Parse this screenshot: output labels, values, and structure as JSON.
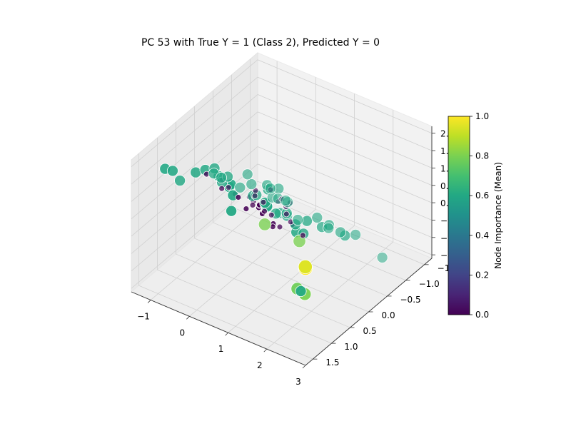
{
  "chart_data": {
    "type": "scatter",
    "projection": "3d",
    "title": "PC 53 with True Y = 1 (Class 2), Predicted Y = 0",
    "xlabel": "",
    "ylabel": "",
    "zlabel": "",
    "x_ticks": [
      "−1",
      "0",
      "1",
      "2",
      "3"
    ],
    "y_ticks": [
      "−1.5",
      "−1.0",
      "−0.5",
      "0.0",
      "0.5",
      "1.0",
      "1.5"
    ],
    "z_ticks": [
      "−1.5",
      "−1.0",
      "−0.5",
      "0.0",
      "0.5",
      "1.0",
      "1.5",
      "2.0"
    ],
    "xlim": [
      -1.5,
      3.0
    ],
    "ylim": [
      -1.7,
      1.7
    ],
    "zlim": [
      -1.6,
      2.2
    ],
    "grid": true,
    "colormap": "viridis",
    "colorbar": {
      "label": "Node Importance (Mean)",
      "ticks": [
        "0.0",
        "0.2",
        "0.4",
        "0.6",
        "0.8",
        "1.0"
      ],
      "range": [
        0.0,
        1.0
      ]
    },
    "points": [
      {
        "x": 0.6,
        "y": 1.25,
        "z": 2.0,
        "importance": 0.6
      },
      {
        "x": 0.7,
        "y": 1.3,
        "z": 1.4,
        "importance": 0.6
      },
      {
        "x": 0.55,
        "y": 1.1,
        "z": 1.6,
        "importance": 0.6
      },
      {
        "x": 0.4,
        "y": 1.0,
        "z": 1.75,
        "importance": 0.6
      },
      {
        "x": -1.3,
        "y": 1.0,
        "z": 1.4,
        "importance": 0.6
      },
      {
        "x": -1.2,
        "y": 0.9,
        "z": 1.3,
        "importance": 0.6
      },
      {
        "x": -0.7,
        "y": 0.8,
        "z": 1.4,
        "importance": 0.6
      },
      {
        "x": -0.55,
        "y": 0.7,
        "z": 1.45,
        "importance": 0.6
      },
      {
        "x": -0.3,
        "y": 0.6,
        "z": 1.3,
        "importance": 0.6
      },
      {
        "x": -0.6,
        "y": 0.4,
        "z": 1.2,
        "importance": 0.6
      },
      {
        "x": -0.5,
        "y": 0.3,
        "z": 0.75,
        "importance": 0.6
      },
      {
        "x": -0.45,
        "y": 0.2,
        "z": 0.85,
        "importance": 0.6
      },
      {
        "x": -1.3,
        "y": 0.6,
        "z": 0.7,
        "importance": 0.6
      },
      {
        "x": -1.0,
        "y": 0.0,
        "z": 0.5,
        "importance": 0.6
      },
      {
        "x": -1.0,
        "y": -0.2,
        "z": 0.2,
        "importance": 0.6
      },
      {
        "x": 0.2,
        "y": 0.2,
        "z": 0.6,
        "importance": 0.6
      },
      {
        "x": 0.4,
        "y": 0.0,
        "z": 0.7,
        "importance": 0.6
      },
      {
        "x": 0.1,
        "y": 0.0,
        "z": 0.4,
        "importance": 0.6
      },
      {
        "x": 0.6,
        "y": 0.0,
        "z": 0.1,
        "importance": 0.6
      },
      {
        "x": 0.7,
        "y": -0.2,
        "z": -0.1,
        "importance": 0.6
      },
      {
        "x": 0.8,
        "y": 0.1,
        "z": 0.3,
        "importance": 0.6
      },
      {
        "x": 1.0,
        "y": 0.7,
        "z": 1.2,
        "importance": 0.6
      },
      {
        "x": 1.1,
        "y": 0.75,
        "z": 1.25,
        "importance": 0.6
      },
      {
        "x": 1.05,
        "y": 0.7,
        "z": 1.15,
        "importance": 0.6
      },
      {
        "x": 0.9,
        "y": 0.6,
        "z": 1.1,
        "importance": 0.6
      },
      {
        "x": 1.3,
        "y": 0.2,
        "z": 0.3,
        "importance": 0.6
      },
      {
        "x": 1.5,
        "y": 0.1,
        "z": 0.4,
        "importance": 0.6
      },
      {
        "x": 1.7,
        "y": 0.4,
        "z": 0.4,
        "importance": 0.6
      },
      {
        "x": 1.6,
        "y": -0.2,
        "z": 0.0,
        "importance": 0.6
      },
      {
        "x": 1.9,
        "y": 0.8,
        "z": 0.9,
        "importance": 0.6
      },
      {
        "x": 2.1,
        "y": -0.3,
        "z": -0.1,
        "importance": 0.6
      },
      {
        "x": 1.4,
        "y": -0.6,
        "z": -0.4,
        "importance": 0.6
      },
      {
        "x": -0.9,
        "y": -0.8,
        "z": -0.2,
        "importance": 0.6
      },
      {
        "x": -0.9,
        "y": -0.6,
        "z": -0.4,
        "importance": 0.6
      },
      {
        "x": -0.7,
        "y": -0.7,
        "z": -0.3,
        "importance": 0.6
      },
      {
        "x": -0.2,
        "y": -0.6,
        "z": 0.0,
        "importance": 0.6
      },
      {
        "x": 0.0,
        "y": -0.7,
        "z": -0.1,
        "importance": 0.6
      },
      {
        "x": -0.5,
        "y": -1.0,
        "z": -0.6,
        "importance": 0.6
      },
      {
        "x": -0.3,
        "y": -1.0,
        "z": -0.8,
        "importance": 0.6
      },
      {
        "x": -0.2,
        "y": -1.1,
        "z": -0.9,
        "importance": 0.6
      },
      {
        "x": -0.1,
        "y": -1.05,
        "z": -0.85,
        "importance": 0.6
      },
      {
        "x": -0.35,
        "y": -0.9,
        "z": -0.7,
        "importance": 0.6
      },
      {
        "x": 0.9,
        "y": -0.8,
        "z": -0.6,
        "importance": 0.6
      },
      {
        "x": 1.1,
        "y": -0.9,
        "z": -0.9,
        "importance": 0.6
      },
      {
        "x": 1.6,
        "y": -0.7,
        "z": -0.6,
        "importance": 0.6
      },
      {
        "x": 1.7,
        "y": -1.0,
        "z": -0.9,
        "importance": 0.6
      },
      {
        "x": 2.2,
        "y": -1.2,
        "z": -1.5,
        "importance": 0.6
      },
      {
        "x": 0.4,
        "y": -0.8,
        "z": -0.9,
        "importance": 0.6
      },
      {
        "x": 0.5,
        "y": -0.4,
        "z": -0.3,
        "importance": 0.6
      },
      {
        "x": 3.0,
        "y": 1.7,
        "z": 1.2,
        "importance": 1.0
      },
      {
        "x": 2.9,
        "y": 1.6,
        "z": 1.1,
        "importance": 0.95
      },
      {
        "x": 2.6,
        "y": 1.3,
        "z": -0.1,
        "importance": 0.8
      },
      {
        "x": 2.5,
        "y": 1.4,
        "z": 0.1,
        "importance": 0.78
      },
      {
        "x": 2.4,
        "y": 1.2,
        "z": -0.2,
        "importance": 0.6
      },
      {
        "x": 1.5,
        "y": 0.3,
        "z": 0.0,
        "importance": 0.8
      },
      {
        "x": 0.7,
        "y": 0.4,
        "z": 0.2,
        "importance": 0.8
      },
      {
        "x": -0.1,
        "y": 0.8,
        "z": 1.45,
        "importance": 0.0
      },
      {
        "x": 1.6,
        "y": 1.5,
        "z": 2.1,
        "importance": 0.0
      },
      {
        "x": 0.6,
        "y": 0.6,
        "z": 1.0,
        "importance": 0.0
      },
      {
        "x": 0.85,
        "y": 0.7,
        "z": 1.1,
        "importance": 0.0
      },
      {
        "x": 0.9,
        "y": 0.75,
        "z": 1.15,
        "importance": 0.0
      },
      {
        "x": 1.1,
        "y": 0.6,
        "z": 0.5,
        "importance": 0.0
      },
      {
        "x": 0.3,
        "y": 0.4,
        "z": 0.8,
        "importance": 0.0
      },
      {
        "x": 0.5,
        "y": 0.2,
        "z": 0.3,
        "importance": 0.0
      },
      {
        "x": 0.6,
        "y": -0.4,
        "z": -0.5,
        "importance": 0.0
      },
      {
        "x": 0.2,
        "y": -0.3,
        "z": -0.4,
        "importance": 0.0
      },
      {
        "x": 0.3,
        "y": -0.6,
        "z": -0.6,
        "importance": 0.0
      },
      {
        "x": -0.4,
        "y": -0.9,
        "z": -0.5,
        "importance": 0.0
      },
      {
        "x": -0.9,
        "y": -1.0,
        "z": -1.0,
        "importance": 0.0
      },
      {
        "x": -0.2,
        "y": -0.5,
        "z": -0.4,
        "importance": 0.0
      },
      {
        "x": 0.8,
        "y": 0.1,
        "z": -0.1,
        "importance": 0.0
      },
      {
        "x": 1.0,
        "y": 0.2,
        "z": 0.4,
        "importance": 0.0
      },
      {
        "x": -0.3,
        "y": 0.5,
        "z": 1.1,
        "importance": 0.0
      },
      {
        "x": 0.1,
        "y": 0.1,
        "z": 0.2,
        "importance": 0.0
      },
      {
        "x": -0.2,
        "y": -0.9,
        "z": -0.75,
        "importance": 0.0
      },
      {
        "x": 0.0,
        "y": -0.9,
        "z": -0.8,
        "importance": 0.0
      },
      {
        "x": 0.7,
        "y": 1.2,
        "z": 1.8,
        "importance": 0.0
      },
      {
        "x": 1.5,
        "y": 1.3,
        "z": 1.7,
        "importance": 0.0
      },
      {
        "x": 0.7,
        "y": 0.9,
        "z": 1.1,
        "importance": 0.0
      },
      {
        "x": 0.4,
        "y": 0.8,
        "z": 1.2,
        "importance": 0.0
      },
      {
        "x": 1.4,
        "y": 0.9,
        "z": 1.0,
        "importance": 0.0
      },
      {
        "x": -0.9,
        "y": 0.3,
        "z": 0.8,
        "importance": 0.0
      },
      {
        "x": -0.7,
        "y": 0.1,
        "z": 0.3,
        "importance": 0.0
      },
      {
        "x": 1.3,
        "y": 0.0,
        "z": -0.2,
        "importance": 0.0
      },
      {
        "x": 1.6,
        "y": 0.6,
        "z": 0.8,
        "importance": 0.0
      },
      {
        "x": -1.1,
        "y": -0.5,
        "z": -0.4,
        "importance": 0.0
      },
      {
        "x": -0.5,
        "y": -0.6,
        "z": -0.3,
        "importance": 0.0
      },
      {
        "x": 0.2,
        "y": -0.8,
        "z": -0.5,
        "importance": 0.0
      },
      {
        "x": -0.3,
        "y": -1.1,
        "z": -0.9,
        "importance": 0.0
      }
    ]
  }
}
